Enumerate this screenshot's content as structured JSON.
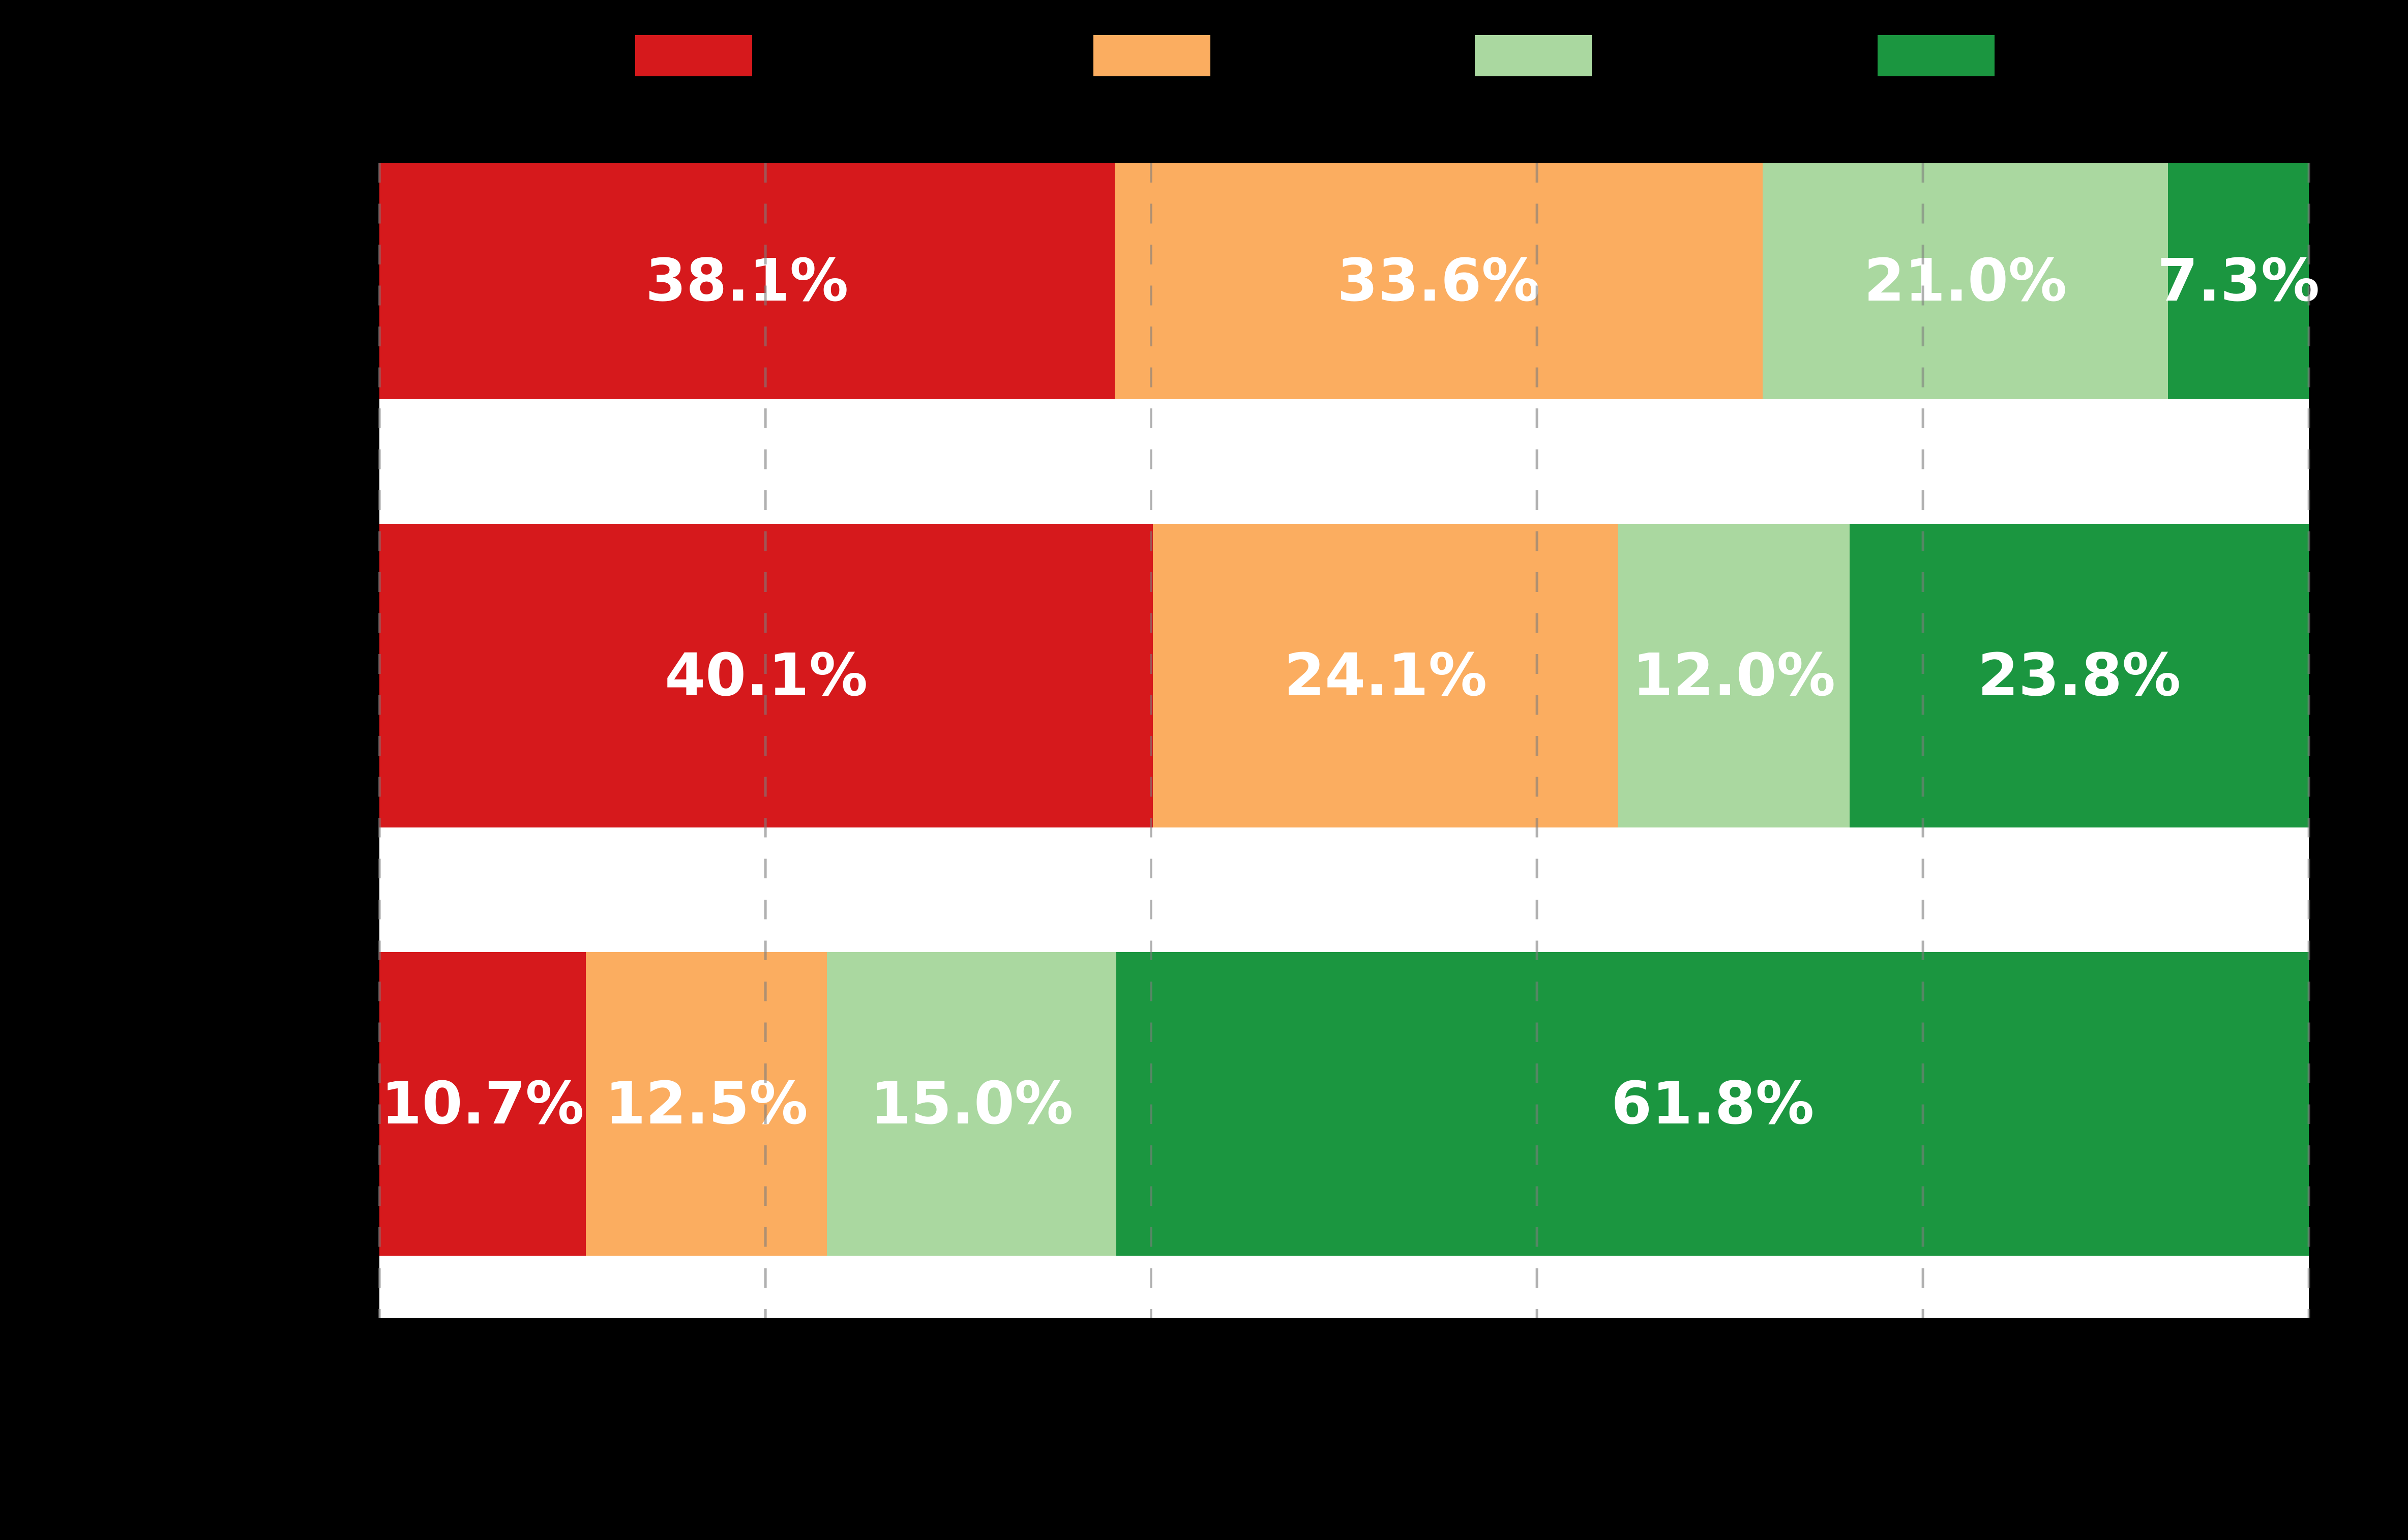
{
  "chart_data": {
    "type": "bar",
    "stacked": true,
    "orientation": "horizontal",
    "background": "#000000",
    "plot_background": "#ffffff",
    "title_visible": false,
    "x_axis": {
      "min": 0,
      "max": 100,
      "unit": "%",
      "gridlines_pct": [
        0,
        20,
        40,
        60,
        80,
        100
      ],
      "gridline_style": "dashed",
      "gridline_color": "#7d7d7d",
      "gridlines_on_top": true,
      "tick_labels_visible": false
    },
    "y_axis": {
      "categories": [
        "",
        "",
        ""
      ],
      "labels_visible": false
    },
    "legend": {
      "position": "top",
      "labels_visible": false
    },
    "series": [
      {
        "name": "series-1-red",
        "color": "#d6191c",
        "values": [
          38.1,
          40.1,
          10.7
        ]
      },
      {
        "name": "series-2-orange",
        "color": "#fbad60",
        "values": [
          33.6,
          24.1,
          12.5
        ]
      },
      {
        "name": "series-3-light-green",
        "color": "#aad8a0",
        "values": [
          21.0,
          12.0,
          15.0
        ]
      },
      {
        "name": "series-4-dark-green",
        "color": "#1b9640",
        "values": [
          7.3,
          23.8,
          61.8
        ]
      }
    ],
    "bar_labels": [
      [
        "38.1%",
        "33.6%",
        "21.0%",
        "7.3%"
      ],
      [
        "40.1%",
        "24.1%",
        "12.0%",
        "23.8%"
      ],
      [
        "10.7%",
        "12.5%",
        "15.0%",
        "61.8%"
      ]
    ],
    "label_color": "#ffffff"
  }
}
